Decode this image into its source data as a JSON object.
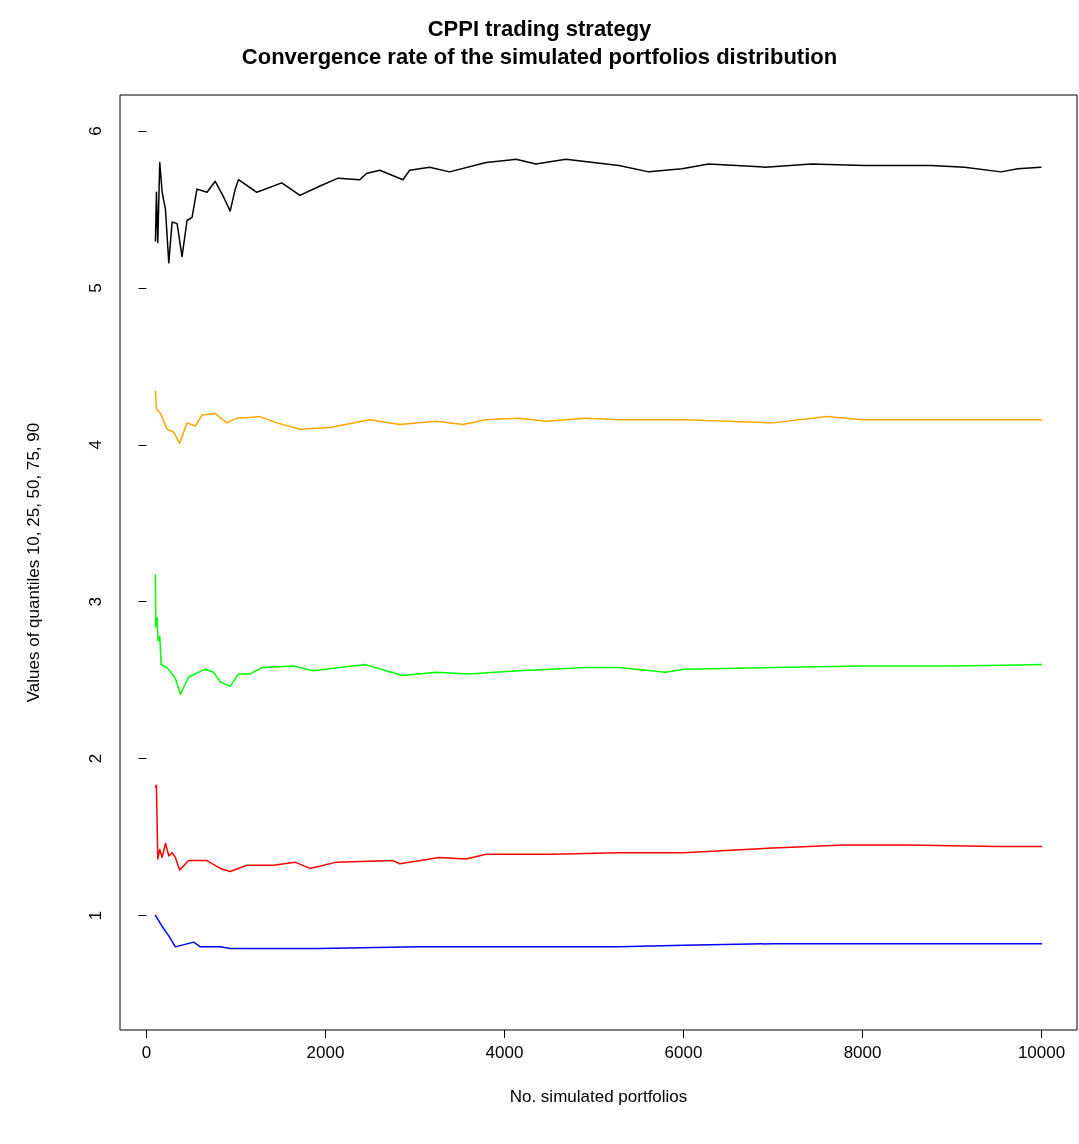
{
  "chart_data": {
    "type": "line",
    "title": "CPPI trading strategy",
    "subtitle": "Convergence rate of the simulated portfolios distribution",
    "xlabel": "No. simulated portfolios",
    "ylabel": "Values of quantiles 10, 25, 50, 75, 90",
    "xlim": [
      -296,
      10396
    ],
    "ylim": [
      0.27,
      6.23
    ],
    "xticks": [
      0,
      2000,
      4000,
      6000,
      8000,
      10000
    ],
    "yticks": [
      1,
      2,
      3,
      4,
      5,
      6
    ],
    "grid": false,
    "marker": "none",
    "line_style": "solid",
    "series": [
      {
        "color": "#000000",
        "x": [
          100,
          111,
          126,
          148,
          175,
          212,
          249,
          286,
          342,
          397,
          453,
          509,
          564,
          676,
          768,
          861,
          935,
          991,
          1028,
          1232,
          1511,
          1715,
          1938,
          2142,
          2383,
          2457,
          2606,
          2865,
          2940,
          3163,
          3385,
          3794,
          4128,
          4350,
          4685,
          5278,
          5612,
          5984,
          6281,
          6912,
          7431,
          8025,
          8767,
          9139,
          9547,
          9733,
          9993
        ],
        "values": [
          5.3,
          5.61,
          5.29,
          5.8,
          5.61,
          5.5,
          5.16,
          5.42,
          5.41,
          5.2,
          5.43,
          5.45,
          5.63,
          5.61,
          5.68,
          5.58,
          5.49,
          5.63,
          5.69,
          5.61,
          5.67,
          5.59,
          5.65,
          5.7,
          5.69,
          5.73,
          5.75,
          5.69,
          5.75,
          5.77,
          5.74,
          5.8,
          5.82,
          5.79,
          5.82,
          5.78,
          5.74,
          5.76,
          5.79,
          5.77,
          5.79,
          5.78,
          5.78,
          5.77,
          5.74,
          5.76,
          5.77
        ]
      },
      {
        "color": "#ffa500",
        "x": [
          100,
          111,
          156,
          230,
          304,
          371,
          453,
          546,
          620,
          768,
          898,
          1010,
          1269,
          1455,
          1715,
          2049,
          2494,
          2829,
          3237,
          3534,
          3794,
          4165,
          4462,
          4908,
          5278,
          6000,
          7000,
          7600,
          8000,
          9000,
          10000
        ],
        "values": [
          4.34,
          4.23,
          4.2,
          4.1,
          4.08,
          4.01,
          4.14,
          4.12,
          4.19,
          4.2,
          4.14,
          4.17,
          4.18,
          4.14,
          4.1,
          4.11,
          4.16,
          4.13,
          4.15,
          4.13,
          4.16,
          4.17,
          4.15,
          4.17,
          4.16,
          4.16,
          4.14,
          4.18,
          4.16,
          4.16,
          4.16
        ]
      },
      {
        "color": "#00ff00",
        "x": [
          100,
          104,
          119,
          130,
          148,
          164,
          230,
          323,
          379,
          471,
          657,
          750,
          824,
          935,
          1028,
          1158,
          1288,
          1640,
          1863,
          2160,
          2439,
          2680,
          2865,
          3237,
          3608,
          4165,
          4908,
          5278,
          5800,
          6000,
          7000,
          8000,
          9000,
          10000
        ],
        "values": [
          3.17,
          2.84,
          2.9,
          2.75,
          2.78,
          2.6,
          2.58,
          2.51,
          2.41,
          2.52,
          2.57,
          2.55,
          2.49,
          2.46,
          2.54,
          2.54,
          2.58,
          2.59,
          2.56,
          2.58,
          2.6,
          2.56,
          2.53,
          2.55,
          2.54,
          2.56,
          2.58,
          2.58,
          2.55,
          2.57,
          2.58,
          2.59,
          2.59,
          2.6
        ]
      },
      {
        "color": "#ff0000",
        "x": [
          100,
          111,
          126,
          148,
          175,
          212,
          249,
          286,
          323,
          371,
          471,
          676,
          824,
          935,
          1121,
          1418,
          1659,
          1826,
          2123,
          2754,
          2829,
          3274,
          3571,
          3794,
          4536,
          5278,
          6000,
          7000,
          7800,
          8500,
          9500,
          10000
        ],
        "values": [
          1.82,
          1.83,
          1.36,
          1.42,
          1.37,
          1.46,
          1.38,
          1.4,
          1.37,
          1.29,
          1.35,
          1.35,
          1.3,
          1.28,
          1.32,
          1.32,
          1.34,
          1.3,
          1.34,
          1.35,
          1.33,
          1.37,
          1.36,
          1.39,
          1.39,
          1.4,
          1.4,
          1.43,
          1.45,
          1.45,
          1.44,
          1.44
        ]
      },
      {
        "color": "#0000ff",
        "x": [
          100,
          175,
          249,
          323,
          527,
          601,
          824,
          935,
          1938,
          3051,
          3571,
          5278,
          6000,
          7000,
          10000
        ],
        "values": [
          1.0,
          0.93,
          0.87,
          0.8,
          0.83,
          0.8,
          0.8,
          0.79,
          0.79,
          0.8,
          0.8,
          0.8,
          0.81,
          0.82,
          0.82
        ]
      }
    ]
  }
}
